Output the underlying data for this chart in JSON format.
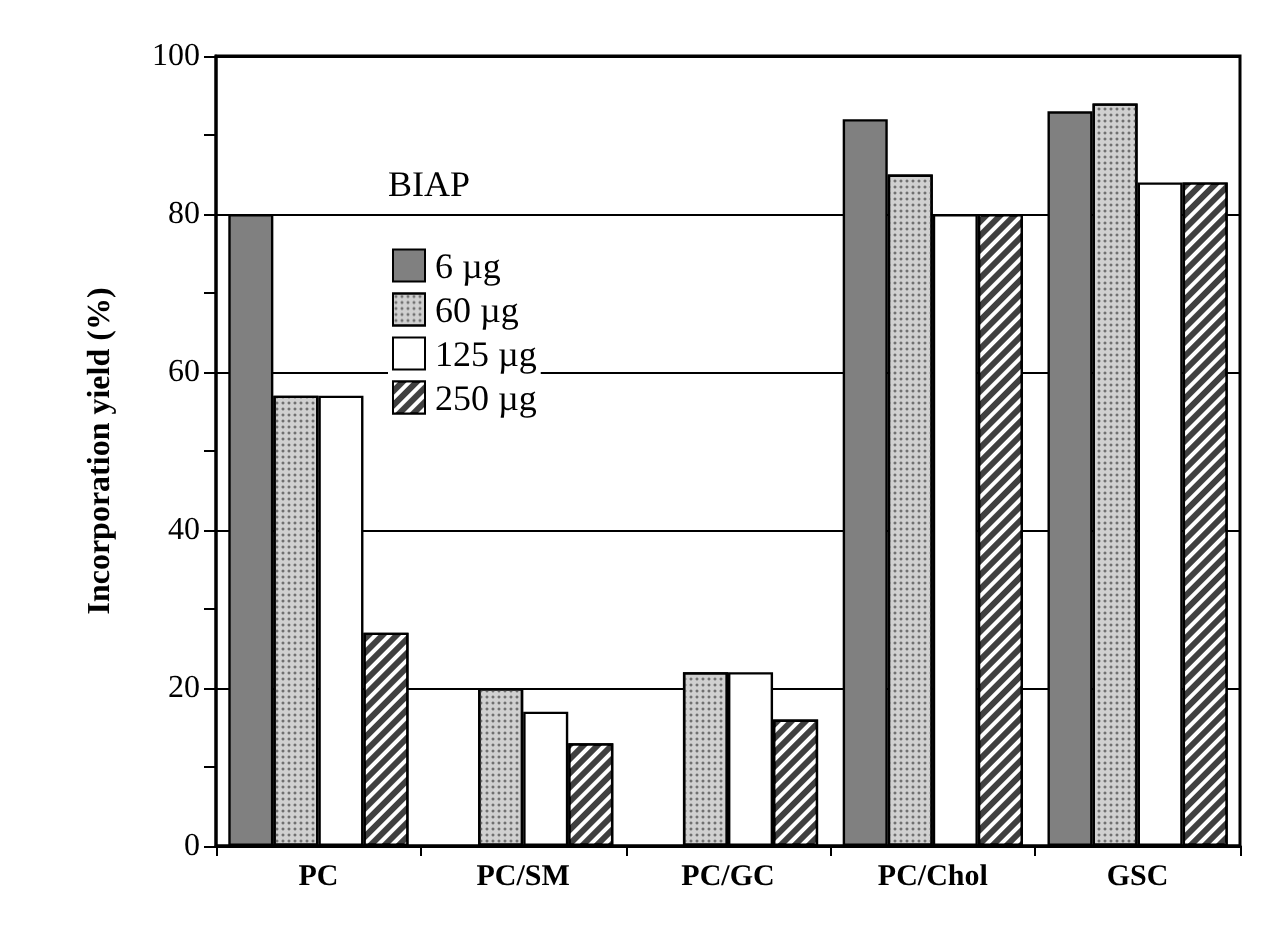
{
  "chart_data": {
    "type": "bar",
    "ylabel": "Incorporation yield (%)",
    "categories": [
      "PC",
      "PC/SM",
      "PC/GC",
      "PC/Chol",
      "GSC"
    ],
    "series": [
      {
        "name": "6 µg",
        "color": "#808080",
        "values": [
          80,
          null,
          null,
          92,
          93
        ]
      },
      {
        "name": "60 µg",
        "color": "#d0d0d0",
        "values": [
          57,
          20,
          22,
          85,
          94
        ]
      },
      {
        "name": "125 µg",
        "color": "#ffffff",
        "values": [
          57,
          17,
          22,
          80,
          84
        ]
      },
      {
        "name": "250 µg",
        "color": "#404040",
        "values": [
          27,
          13,
          16,
          80,
          84
        ]
      }
    ],
    "ylim": [
      0,
      100
    ],
    "yticks": [
      0,
      {
        "value": 10,
        "label": null
      },
      20,
      {
        "value": 30,
        "label": null
      },
      40,
      {
        "value": 50,
        "label": null
      },
      60,
      {
        "value": 70,
        "label": null
      },
      80,
      {
        "value": 90,
        "label": null
      },
      100
    ],
    "grid": "y",
    "legend": "top left",
    "annotations": [
      "BIAP"
    ]
  }
}
